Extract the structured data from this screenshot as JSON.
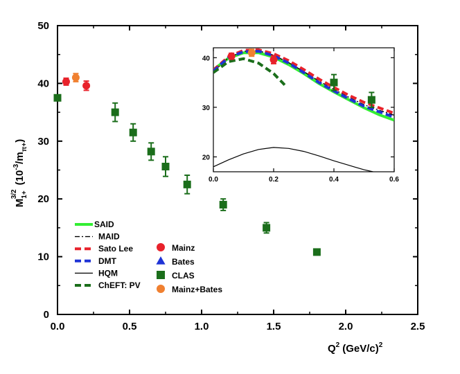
{
  "chart_data": {
    "type": "scatter",
    "main": {
      "xlim": [
        0,
        2.5
      ],
      "ylim": [
        0,
        50
      ],
      "x_ticks": [
        "0.0",
        "0.5",
        "1.0",
        "1.5",
        "2.0",
        "2.5"
      ],
      "x_tick_values": [
        0,
        0.5,
        1.0,
        1.5,
        2.0,
        2.5
      ],
      "y_ticks": [
        "0",
        "10",
        "20",
        "30",
        "40",
        "50"
      ],
      "y_tick_values": [
        0,
        10,
        20,
        30,
        40,
        50
      ],
      "ylabel": {
        "base": "M",
        "sub": "1+",
        "sup": "3/2",
        "units_open": "(10",
        "units_exp": "-3",
        "units_mid": "/m",
        "units_sub": "π+",
        "units_close": ")"
      },
      "xlabel": {
        "base": "Q",
        "sup": "2",
        "units": "(GeV/c)",
        "units_sup": "2"
      },
      "series": [
        {
          "name": "Mainz",
          "color": "#e8222b",
          "marker": "circle",
          "points": [
            [
              0.06,
              40.3,
              0.6
            ],
            [
              0.2,
              39.6,
              0.8
            ]
          ]
        },
        {
          "name": "Bates",
          "color": "#1f33d6",
          "marker": "triangle",
          "points": []
        },
        {
          "name": "Mainz+Bates",
          "color": "#f08030",
          "marker": "circle",
          "points": [
            [
              0.127,
              41.0,
              0.7
            ]
          ]
        },
        {
          "name": "CLAS",
          "color": "#1b6e1b",
          "marker": "square",
          "points": [
            [
              0.0,
              37.5,
              0.0
            ],
            [
              0.4,
              35.0,
              1.6
            ],
            [
              0.525,
              31.5,
              1.5
            ],
            [
              0.65,
              28.2,
              1.5
            ],
            [
              0.75,
              25.6,
              1.7
            ],
            [
              0.9,
              22.5,
              1.6
            ],
            [
              1.15,
              19.0,
              1.0
            ],
            [
              1.45,
              15.0,
              0.9
            ],
            [
              1.8,
              10.8,
              0.5
            ]
          ]
        }
      ]
    },
    "inset": {
      "xlim": [
        0,
        0.6
      ],
      "ylim": [
        17,
        42
      ],
      "x_ticks": [
        "0.0",
        "0.2",
        "0.4",
        "0.6"
      ],
      "x_tick_values": [
        0,
        0.2,
        0.4,
        0.6
      ],
      "y_ticks": [
        "20",
        "30",
        "40"
      ],
      "y_tick_values": [
        20,
        30,
        40
      ],
      "curves": [
        {
          "name": "SAID",
          "color": "#33ee33",
          "style": "solid-thick",
          "points": [
            [
              0,
              37.6
            ],
            [
              0.05,
              39.9
            ],
            [
              0.1,
              41.0
            ],
            [
              0.15,
              41.0
            ],
            [
              0.2,
              40.1
            ],
            [
              0.25,
              38.6
            ],
            [
              0.3,
              36.8
            ],
            [
              0.35,
              34.8
            ],
            [
              0.4,
              33.1
            ],
            [
              0.45,
              31.5
            ],
            [
              0.5,
              29.9
            ],
            [
              0.55,
              28.5
            ],
            [
              0.6,
              27.4
            ]
          ]
        },
        {
          "name": "MAID",
          "color": "#000000",
          "style": "dashdot",
          "points": [
            [
              0,
              37.2
            ],
            [
              0.05,
              40.0
            ],
            [
              0.1,
              41.3
            ],
            [
              0.15,
              41.4
            ],
            [
              0.2,
              40.5
            ],
            [
              0.25,
              39.0
            ],
            [
              0.3,
              37.2
            ],
            [
              0.35,
              35.3
            ],
            [
              0.4,
              33.6
            ],
            [
              0.45,
              32.0
            ],
            [
              0.5,
              30.5
            ],
            [
              0.55,
              29.4
            ],
            [
              0.6,
              28.4
            ]
          ]
        },
        {
          "name": "Sato Lee",
          "color": "#e8222b",
          "style": "dashed-thick",
          "points": [
            [
              0,
              37.5
            ],
            [
              0.05,
              40.2
            ],
            [
              0.1,
              41.5
            ],
            [
              0.15,
              41.6
            ],
            [
              0.2,
              40.8
            ],
            [
              0.25,
              39.4
            ],
            [
              0.3,
              37.6
            ],
            [
              0.35,
              35.7
            ],
            [
              0.4,
              34.0
            ],
            [
              0.45,
              32.4
            ],
            [
              0.5,
              31.0
            ],
            [
              0.55,
              29.9
            ],
            [
              0.6,
              28.8
            ]
          ]
        },
        {
          "name": "DMT",
          "color": "#1f33d6",
          "style": "dashed-thick",
          "points": [
            [
              0,
              37.3
            ],
            [
              0.05,
              40.0
            ],
            [
              0.1,
              41.2
            ],
            [
              0.15,
              41.3
            ],
            [
              0.2,
              40.4
            ],
            [
              0.25,
              38.9
            ],
            [
              0.3,
              37.0
            ],
            [
              0.35,
              35.0
            ],
            [
              0.4,
              33.3
            ],
            [
              0.45,
              31.7
            ],
            [
              0.5,
              30.2
            ],
            [
              0.55,
              29.1
            ],
            [
              0.6,
              28.0
            ]
          ]
        },
        {
          "name": "HQM",
          "color": "#000000",
          "style": "solid-thin",
          "points": [
            [
              0,
              18.0
            ],
            [
              0.05,
              19.4
            ],
            [
              0.1,
              20.6
            ],
            [
              0.15,
              21.5
            ],
            [
              0.2,
              21.9
            ],
            [
              0.25,
              21.7
            ],
            [
              0.3,
              21.1
            ],
            [
              0.35,
              20.2
            ],
            [
              0.4,
              19.2
            ],
            [
              0.45,
              18.3
            ],
            [
              0.5,
              17.4
            ],
            [
              0.53,
              17.0
            ]
          ]
        },
        {
          "name": "ChEFT: PV",
          "color": "#1b6e1b",
          "style": "dashed-thick",
          "points": [
            [
              0,
              37.0
            ],
            [
              0.05,
              39.2
            ],
            [
              0.1,
              39.8
            ],
            [
              0.15,
              38.9
            ],
            [
              0.2,
              36.8
            ],
            [
              0.24,
              34.3
            ]
          ]
        }
      ],
      "data_series": [
        {
          "name": "Mainz",
          "color": "#e8222b",
          "marker": "circle",
          "points": [
            [
              0.06,
              40.3,
              0.6
            ],
            [
              0.2,
              39.6,
              0.8
            ]
          ]
        },
        {
          "name": "Mainz+Bates",
          "color": "#f08030",
          "marker": "circle",
          "points": [
            [
              0.127,
              41.0,
              0.7
            ]
          ]
        },
        {
          "name": "CLAS",
          "color": "#1b6e1b",
          "marker": "square",
          "points": [
            [
              0.4,
              35.0,
              1.6
            ],
            [
              0.525,
              31.5,
              1.5
            ]
          ]
        }
      ]
    },
    "legend_lines": [
      {
        "label": "SAID",
        "color": "#33ee33",
        "style": "solid-thick"
      },
      {
        "label": "MAID",
        "color": "#000000",
        "style": "dashdot"
      },
      {
        "label": "Sato Lee",
        "color": "#e8222b",
        "style": "dashed-thick"
      },
      {
        "label": "DMT",
        "color": "#1f33d6",
        "style": "dashed-thick"
      },
      {
        "label": "HQM",
        "color": "#000000",
        "style": "solid-thin"
      },
      {
        "label": "ChEFT: PV",
        "color": "#1b6e1b",
        "style": "dashed-thick"
      }
    ],
    "legend_markers": [
      {
        "label": "Mainz",
        "color": "#e8222b",
        "marker": "circle"
      },
      {
        "label": "Bates",
        "color": "#1f33d6",
        "marker": "triangle"
      },
      {
        "label": "CLAS",
        "color": "#1b6e1b",
        "marker": "square"
      },
      {
        "label": "Mainz+Bates",
        "color": "#f08030",
        "marker": "circle"
      }
    ]
  }
}
